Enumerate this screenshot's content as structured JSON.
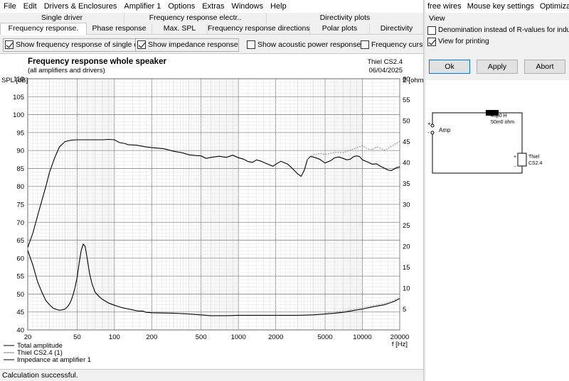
{
  "menubar": [
    "File",
    "Edit",
    "Drivers & Enclosures",
    "Amplifier 1",
    "Options",
    "Extras",
    "Windows",
    "Help"
  ],
  "tabs_row1": [
    "Single driver",
    "Frequency response electr..",
    "Directivity plots"
  ],
  "tabs_row2": [
    "Frequency response.",
    "Phase response",
    "Max. SPL",
    "Frequency response directions",
    "Polar plots",
    "Directivity"
  ],
  "options": {
    "show_single": {
      "label": "Show frequency response of single driver",
      "checked": true
    },
    "show_impedance": {
      "label": "Show impedance response",
      "checked": true
    },
    "show_acoustic_power": {
      "label": "Show acoustic power response",
      "checked": false
    },
    "frequency_cursor": {
      "label": "Frequency cursor",
      "checked": false
    }
  },
  "chart_data": {
    "type": "line",
    "title": "Frequency response whole speaker",
    "subtitle": "(all amplifiers and drivers)",
    "project": "Thiel CS2.4",
    "date": "06/04/2025",
    "ylabel": "SPL [dB]",
    "y2label": "Z [ohm]",
    "xlabel": "f [Hz]",
    "xscale": "log",
    "xlim": [
      20,
      20000
    ],
    "ylim": [
      40,
      110
    ],
    "y2lim": [
      0,
      60
    ],
    "x_ticks": [
      "20",
      "50",
      "100",
      "200",
      "500",
      "1000",
      "2000",
      "5000",
      "10000",
      "20000"
    ],
    "y_ticks": [
      "40",
      "45",
      "50",
      "55",
      "60",
      "65",
      "70",
      "75",
      "80",
      "85",
      "90",
      "95",
      "100",
      "105",
      "110"
    ],
    "y2_ticks": [
      "5",
      "10",
      "15",
      "20",
      "25",
      "30",
      "35",
      "40",
      "45",
      "50",
      "55",
      "60"
    ],
    "grid": true,
    "legend_position": "bottom-left",
    "series": [
      {
        "name": "Total amplitude",
        "axis": "left",
        "color": "#000000",
        "points": [
          [
            20,
            63
          ],
          [
            22,
            67
          ],
          [
            25,
            74
          ],
          [
            28,
            80
          ],
          [
            30,
            84
          ],
          [
            33,
            88
          ],
          [
            36,
            91
          ],
          [
            40,
            92.5
          ],
          [
            45,
            92.9
          ],
          [
            50,
            93
          ],
          [
            60,
            93
          ],
          [
            70,
            93
          ],
          [
            80,
            93
          ],
          [
            90,
            93.1
          ],
          [
            100,
            93
          ],
          [
            110,
            92.2
          ],
          [
            120,
            92
          ],
          [
            130,
            91.6
          ],
          [
            150,
            91.5
          ],
          [
            180,
            91
          ],
          [
            200,
            90.8
          ],
          [
            250,
            90.5
          ],
          [
            300,
            89.8
          ],
          [
            350,
            89.4
          ],
          [
            400,
            88.8
          ],
          [
            450,
            88.6
          ],
          [
            500,
            88.5
          ],
          [
            550,
            87.8
          ],
          [
            600,
            88.1
          ],
          [
            700,
            88.4
          ],
          [
            800,
            88.1
          ],
          [
            900,
            88.7
          ],
          [
            1000,
            88
          ],
          [
            1100,
            87.6
          ],
          [
            1200,
            86.9
          ],
          [
            1300,
            86.7
          ],
          [
            1400,
            87.4
          ],
          [
            1500,
            87.1
          ],
          [
            1700,
            86.3
          ],
          [
            1900,
            85.6
          ],
          [
            2000,
            86.2
          ],
          [
            2200,
            87
          ],
          [
            2500,
            86.2
          ],
          [
            2800,
            84.6
          ],
          [
            3000,
            83.5
          ],
          [
            3200,
            82.8
          ],
          [
            3400,
            84.5
          ],
          [
            3600,
            87.5
          ],
          [
            3800,
            88.3
          ],
          [
            4000,
            88.2
          ],
          [
            4500,
            87.6
          ],
          [
            5000,
            86.5
          ],
          [
            5500,
            87.1
          ],
          [
            6000,
            88
          ],
          [
            6500,
            88.2
          ],
          [
            7000,
            87.8
          ],
          [
            7500,
            87.4
          ],
          [
            8000,
            87.6
          ],
          [
            8500,
            88.3
          ],
          [
            9000,
            88.5
          ],
          [
            9500,
            88.3
          ],
          [
            10000,
            87.4
          ],
          [
            11000,
            86.8
          ],
          [
            12000,
            86.2
          ],
          [
            13000,
            86.3
          ],
          [
            14000,
            85.6
          ],
          [
            15000,
            85.1
          ],
          [
            16000,
            84.6
          ],
          [
            17000,
            84.4
          ],
          [
            18000,
            84.8
          ],
          [
            19000,
            85.3
          ],
          [
            20000,
            85.4
          ]
        ]
      },
      {
        "name": "Thiel CS2.4 (1)",
        "axis": "left",
        "color": "#7f7f7f",
        "points": [
          [
            3600,
            87.5
          ],
          [
            4000,
            88.8
          ],
          [
            4500,
            89.2
          ],
          [
            5000,
            88.9
          ],
          [
            5500,
            89.2
          ],
          [
            6000,
            89.5
          ],
          [
            7000,
            89.4
          ],
          [
            8000,
            90.1
          ],
          [
            9000,
            90.8
          ],
          [
            10000,
            91.3
          ],
          [
            11000,
            90.5
          ],
          [
            12000,
            90.2
          ],
          [
            13000,
            91
          ],
          [
            14000,
            90.6
          ],
          [
            15000,
            90.1
          ],
          [
            16000,
            90.5
          ],
          [
            17000,
            91.2
          ],
          [
            18000,
            91.6
          ],
          [
            20000,
            92.6
          ]
        ]
      },
      {
        "name": "Impedance at amplifier 1",
        "axis": "right",
        "color": "#000000",
        "points": [
          [
            20,
            19
          ],
          [
            22,
            15.5
          ],
          [
            24,
            11.5
          ],
          [
            26,
            9
          ],
          [
            28,
            7
          ],
          [
            30,
            6
          ],
          [
            32,
            5.2
          ],
          [
            34,
            4.9
          ],
          [
            36,
            4.7
          ],
          [
            38,
            4.8
          ],
          [
            40,
            5
          ],
          [
            42,
            5.6
          ],
          [
            44,
            6.5
          ],
          [
            46,
            8
          ],
          [
            48,
            10
          ],
          [
            50,
            12.5
          ],
          [
            52,
            16
          ],
          [
            54,
            19
          ],
          [
            56,
            20.5
          ],
          [
            58,
            20
          ],
          [
            60,
            17.5
          ],
          [
            63,
            13.5
          ],
          [
            66,
            11
          ],
          [
            70,
            9
          ],
          [
            75,
            8
          ],
          [
            80,
            7.3
          ],
          [
            90,
            6.4
          ],
          [
            100,
            5.9
          ],
          [
            110,
            5.5
          ],
          [
            120,
            5.2
          ],
          [
            130,
            5
          ],
          [
            140,
            4.8
          ],
          [
            150,
            4.6
          ],
          [
            160,
            4.5
          ],
          [
            170,
            4.5
          ],
          [
            180,
            4.2
          ],
          [
            200,
            4.1
          ],
          [
            300,
            4
          ],
          [
            400,
            3.8
          ],
          [
            500,
            3.6
          ],
          [
            600,
            3.4
          ],
          [
            800,
            3.4
          ],
          [
            1000,
            3.5
          ],
          [
            1500,
            3.5
          ],
          [
            2000,
            3.5
          ],
          [
            3000,
            3.5
          ],
          [
            4000,
            3.6
          ],
          [
            5000,
            3.8
          ],
          [
            6000,
            4
          ],
          [
            7000,
            4.2
          ],
          [
            8000,
            4.5
          ],
          [
            10000,
            5
          ],
          [
            12000,
            5.5
          ],
          [
            15000,
            6
          ],
          [
            18000,
            6.8
          ],
          [
            20000,
            7.5
          ]
        ]
      }
    ]
  },
  "status": "Calculation successful.",
  "right_panel": {
    "menu": [
      "free wires",
      "Mouse key settings",
      "Optimization"
    ],
    "view_group_label": "View",
    "denomination": {
      "label": "Denomination instead of R-values for inductors",
      "checked": false
    },
    "view_for_printing": {
      "label": "View for printing",
      "checked": true
    },
    "buttons": {
      "ok": "Ok",
      "apply": "Apply",
      "abort": "Abort"
    },
    "schematic": {
      "amp_label": "Amp",
      "inductor_label": "45µ0 H",
      "resistance_label": "50m0 ohm",
      "driver_label_1": "Thiel",
      "driver_label_2": "CS2.4",
      "plus": "+",
      "minus": "-"
    }
  }
}
